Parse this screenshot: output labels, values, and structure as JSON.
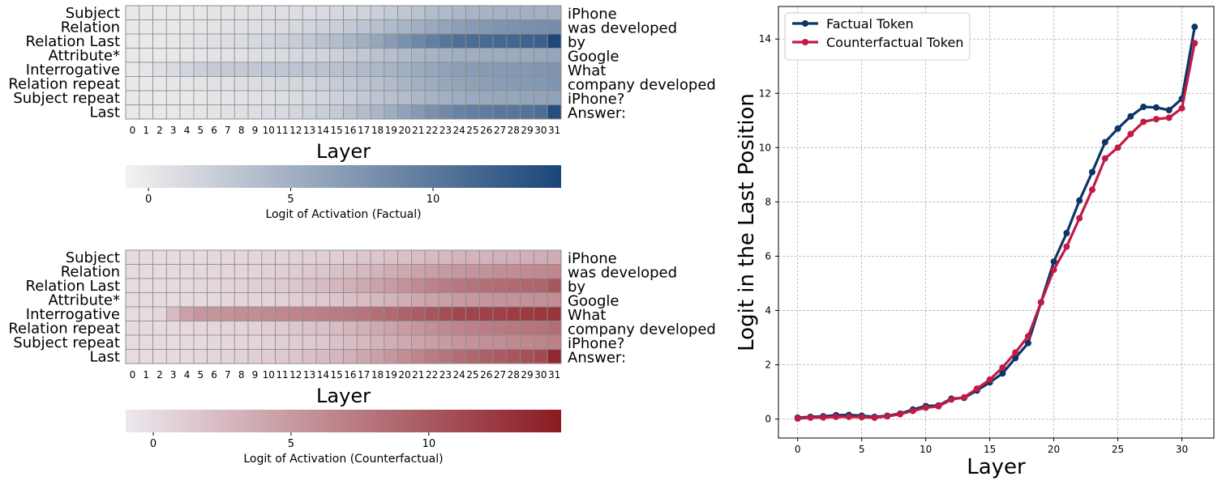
{
  "chart_data": [
    {
      "type": "heatmap",
      "name": "factual",
      "row_labels": [
        "Subject",
        "Relation",
        "Relation Last",
        "Attribute*",
        "Interrogative",
        "Relation repeat",
        "Subject repeat",
        "Last"
      ],
      "row_tokens": [
        "iPhone",
        "was developed",
        "by",
        "Google",
        "What",
        "company developed",
        "iPhone?",
        "Answer:"
      ],
      "columns": [
        0,
        1,
        2,
        3,
        4,
        5,
        6,
        7,
        8,
        9,
        10,
        11,
        12,
        13,
        14,
        15,
        16,
        17,
        18,
        19,
        20,
        21,
        22,
        23,
        24,
        25,
        26,
        27,
        28,
        29,
        30,
        31
      ],
      "xlabel": "Layer",
      "colorbar": {
        "label": "Logit of Activation (Factual)",
        "min": -0.8,
        "max": 14.5,
        "ticks": [
          0,
          5,
          10
        ],
        "low_color": "#f5f1f0",
        "high_color": "#1b4679"
      },
      "values": [
        [
          0,
          0,
          0,
          0.1,
          0.1,
          0.2,
          0.3,
          0.4,
          0.5,
          0.6,
          0.7,
          0.8,
          0.9,
          1,
          1.2,
          1.4,
          1.6,
          1.9,
          2.2,
          2.6,
          3,
          3.4,
          3.8,
          4.1,
          4.4,
          4.6,
          4.7,
          4.8,
          4.9,
          5,
          5,
          5.1
        ],
        [
          0,
          0,
          0.1,
          0.1,
          0.2,
          0.3,
          0.4,
          0.5,
          0.6,
          0.8,
          1,
          1.2,
          1.4,
          1.7,
          2,
          2.3,
          2.7,
          3.1,
          3.6,
          4.1,
          4.6,
          5.1,
          5.6,
          6.1,
          6.5,
          6.9,
          7.2,
          7.5,
          7.7,
          7.9,
          8,
          8.2
        ],
        [
          0,
          0,
          0.1,
          0.2,
          0.3,
          0.5,
          0.7,
          0.9,
          1.1,
          1.4,
          1.7,
          2,
          2.4,
          2.8,
          3.3,
          3.8,
          4.4,
          5.1,
          5.9,
          6.8,
          7.8,
          8.7,
          9.5,
          10.2,
          10.8,
          11.1,
          11.3,
          11.5,
          11.7,
          11.9,
          12.2,
          14.3
        ],
        [
          0,
          0,
          0,
          0.1,
          0.2,
          0.3,
          0.4,
          0.5,
          0.6,
          0.8,
          1,
          1.2,
          1.4,
          1.6,
          1.9,
          2.2,
          2.5,
          2.9,
          3.3,
          3.7,
          4.1,
          4.4,
          4.7,
          4.9,
          5.1,
          5.2,
          5.3,
          5.4,
          5.5,
          5.6,
          5.7,
          5.9
        ],
        [
          0,
          0.3,
          0.8,
          1.2,
          1.8,
          2.2,
          2.5,
          2.6,
          2.7,
          2.8,
          2.9,
          3,
          3.1,
          3.2,
          3.3,
          3.5,
          3.7,
          4,
          4.3,
          4.7,
          5.1,
          5.5,
          5.9,
          6.3,
          6.6,
          6.8,
          6.9,
          7,
          7.1,
          7.2,
          7.3,
          7.5
        ],
        [
          0,
          0,
          0.1,
          0.2,
          0.3,
          0.4,
          0.5,
          0.6,
          0.8,
          1,
          1.2,
          1.4,
          1.6,
          1.8,
          2.1,
          2.4,
          2.7,
          3.1,
          3.5,
          4,
          4.5,
          5,
          5.4,
          5.8,
          6.1,
          6.4,
          6.6,
          6.8,
          6.9,
          7,
          7.1,
          7.4
        ],
        [
          0,
          0,
          0,
          0.1,
          0.1,
          0.2,
          0.3,
          0.4,
          0.5,
          0.6,
          0.8,
          1,
          1.2,
          1.4,
          1.7,
          2,
          2.3,
          2.7,
          3.1,
          3.5,
          3.9,
          4.3,
          4.7,
          5,
          5.3,
          5.5,
          5.7,
          5.8,
          5.9,
          6,
          6.1,
          6.3
        ],
        [
          0,
          0,
          0.1,
          0.1,
          0.2,
          0.3,
          0.4,
          0.5,
          0.7,
          0.9,
          1.1,
          1.3,
          1.6,
          1.9,
          2.3,
          2.7,
          3.2,
          3.8,
          4.5,
          5.3,
          6.2,
          7,
          7.8,
          8.4,
          9,
          9.4,
          9.7,
          10,
          10.2,
          10.5,
          10.9,
          13.8
        ]
      ]
    },
    {
      "type": "heatmap",
      "name": "counterfactual",
      "row_labels": [
        "Subject",
        "Relation",
        "Relation Last",
        "Attribute*",
        "Interrogative",
        "Relation repeat",
        "Subject repeat",
        "Last"
      ],
      "row_tokens": [
        "iPhone",
        "was developed",
        "by",
        "Google",
        "What",
        "company developed",
        "iPhone?",
        "Answer:"
      ],
      "columns": [
        0,
        1,
        2,
        3,
        4,
        5,
        6,
        7,
        8,
        9,
        10,
        11,
        12,
        13,
        14,
        15,
        16,
        17,
        18,
        19,
        20,
        21,
        22,
        23,
        24,
        25,
        26,
        27,
        28,
        29,
        30,
        31
      ],
      "xlabel": "Layer",
      "colorbar": {
        "label": "Logit of Activation (Counterfactual)",
        "min": -1,
        "max": 14.8,
        "ticks": [
          0,
          5,
          10
        ],
        "low_color": "#ede8ef",
        "high_color": "#8b1a22"
      },
      "values": [
        [
          0,
          0,
          0,
          0,
          0.1,
          0.1,
          0.2,
          0.3,
          0.4,
          0.5,
          0.6,
          0.7,
          0.8,
          0.9,
          1,
          1.1,
          1.3,
          1.5,
          1.7,
          1.9,
          2.1,
          2.3,
          2.5,
          2.7,
          2.9,
          3,
          3.1,
          3.2,
          3.3,
          3.4,
          3.5,
          3.6
        ],
        [
          0,
          0,
          0,
          0.1,
          0.1,
          0.2,
          0.3,
          0.4,
          0.5,
          0.6,
          0.8,
          1,
          1.2,
          1.4,
          1.7,
          2,
          2.3,
          2.7,
          3.1,
          3.5,
          3.9,
          4.3,
          4.7,
          5,
          5.3,
          5.5,
          5.7,
          5.9,
          6,
          6.1,
          6.2,
          6.4
        ],
        [
          0,
          0,
          0,
          0.1,
          0.2,
          0.3,
          0.4,
          0.5,
          0.7,
          0.9,
          1.1,
          1.4,
          1.7,
          2,
          2.4,
          2.8,
          3.3,
          3.8,
          4.4,
          5,
          5.6,
          6.2,
          6.8,
          7.3,
          7.7,
          8,
          8.3,
          8.5,
          8.7,
          8.9,
          9.1,
          10.2
        ],
        [
          0,
          0,
          0,
          0,
          0.1,
          0.1,
          0.2,
          0.3,
          0.4,
          0.5,
          0.6,
          0.8,
          1,
          1.2,
          1.4,
          1.7,
          2,
          2.3,
          2.7,
          3.1,
          3.5,
          3.9,
          4.3,
          4.6,
          4.9,
          5.1,
          5.3,
          5.5,
          5.6,
          5.7,
          5.8,
          6
        ],
        [
          0,
          0,
          0.3,
          2.5,
          4.5,
          5.2,
          5.4,
          5.6,
          5.8,
          6,
          6.2,
          6.4,
          6.6,
          6.8,
          7,
          7.3,
          7.6,
          7.9,
          8.3,
          8.7,
          9.2,
          9.7,
          10.2,
          10.8,
          11.3,
          11.6,
          11.8,
          11.9,
          12.1,
          12.3,
          12.5,
          12.8
        ],
        [
          0,
          0,
          0,
          0.1,
          0.2,
          0.3,
          0.4,
          0.5,
          0.6,
          0.8,
          1,
          1.2,
          1.5,
          1.8,
          2.1,
          2.5,
          2.9,
          3.3,
          3.8,
          4.3,
          4.8,
          5.3,
          5.8,
          6.2,
          6.6,
          6.9,
          7.2,
          7.4,
          7.6,
          7.8,
          8,
          8.4
        ],
        [
          0,
          0,
          0,
          0,
          0.1,
          0.1,
          0.2,
          0.3,
          0.4,
          0.5,
          0.7,
          0.9,
          1.1,
          1.3,
          1.6,
          1.9,
          2.2,
          2.6,
          3,
          3.4,
          3.8,
          4.2,
          4.6,
          5,
          5.3,
          5.6,
          5.8,
          6,
          6.2,
          6.4,
          6.6,
          6.9
        ],
        [
          0,
          0,
          0,
          0.1,
          0.2,
          0.3,
          0.4,
          0.5,
          0.7,
          0.9,
          1.1,
          1.4,
          1.7,
          2,
          2.4,
          2.8,
          3.3,
          3.9,
          4.5,
          5.2,
          5.9,
          6.6,
          7.3,
          7.9,
          8.5,
          9,
          9.4,
          9.8,
          10.2,
          10.6,
          11.1,
          13.8
        ]
      ]
    },
    {
      "type": "line",
      "name": "last-position-logit",
      "xlabel": "Layer",
      "ylabel": "Logit in the Last Position",
      "xlim": [
        -1.5,
        32.5
      ],
      "ylim": [
        -0.7,
        15.2
      ],
      "xticks": [
        0,
        5,
        10,
        15,
        20,
        25,
        30
      ],
      "yticks": [
        0,
        2,
        4,
        6,
        8,
        10,
        12,
        14
      ],
      "grid": true,
      "legend": "top-left",
      "x": [
        0,
        1,
        2,
        3,
        4,
        5,
        6,
        7,
        8,
        9,
        10,
        11,
        12,
        13,
        14,
        15,
        16,
        17,
        18,
        19,
        20,
        21,
        22,
        23,
        24,
        25,
        26,
        27,
        28,
        29,
        30,
        31
      ],
      "series": [
        {
          "name": "Factual Token",
          "color": "#0b3566",
          "values": [
            0.05,
            0.08,
            0.1,
            0.14,
            0.15,
            0.12,
            0.08,
            0.12,
            0.2,
            0.35,
            0.48,
            0.5,
            0.75,
            0.78,
            1.05,
            1.35,
            1.68,
            2.25,
            2.8,
            4.3,
            5.8,
            6.85,
            8.05,
            9.1,
            10.2,
            10.7,
            11.15,
            11.5,
            11.48,
            11.38,
            11.8,
            14.45
          ]
        },
        {
          "name": "Counterfactual Token",
          "color": "#c01b46",
          "values": [
            0.02,
            0.05,
            0.06,
            0.08,
            0.08,
            0.07,
            0.05,
            0.1,
            0.18,
            0.3,
            0.42,
            0.47,
            0.72,
            0.8,
            1.12,
            1.45,
            1.9,
            2.45,
            3.05,
            4.3,
            5.5,
            6.35,
            7.4,
            8.45,
            9.6,
            10.0,
            10.5,
            10.95,
            11.05,
            11.1,
            11.45,
            13.85
          ]
        }
      ]
    }
  ]
}
